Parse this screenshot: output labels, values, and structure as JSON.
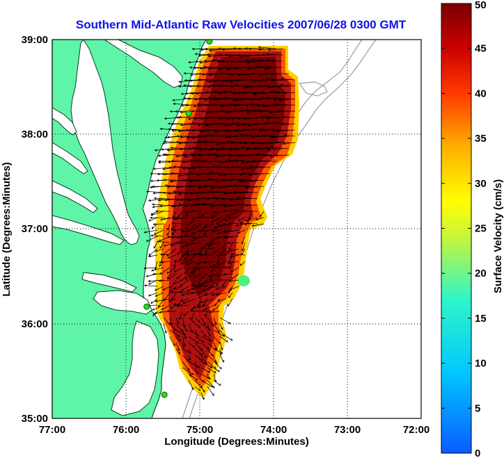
{
  "title": "Southern Mid-Atlantic Raw Velocities 2007/06/28 0300 GMT",
  "xaxis": {
    "label": "Longitude (Degrees:Minutes)",
    "ticks": [
      "77:00",
      "76:00",
      "75:00",
      "74:00",
      "73:00",
      "72:00"
    ]
  },
  "yaxis": {
    "label": "Latitude (Degrees:Minutes)",
    "ticks": [
      "39:00",
      "38:00",
      "37:00",
      "36:00",
      "35:00"
    ]
  },
  "colorbar": {
    "label": "Surface Velocity (cm/s)",
    "ticks": [
      "50",
      "45",
      "40",
      "35",
      "30",
      "25",
      "20",
      "15",
      "10",
      "5",
      "0"
    ],
    "min": 0,
    "max": 50
  },
  "colors": {
    "land": "#5ef5a8",
    "title": "#1010e8",
    "station": "#22dd22"
  },
  "map": {
    "lon_range": [
      -77,
      -72
    ],
    "lat_range": [
      35,
      39
    ],
    "grid": "dotted",
    "stations": [
      {
        "lon": -74.87,
        "lat": 38.98
      },
      {
        "lon": -75.15,
        "lat": 38.22
      },
      {
        "lon": -75.72,
        "lat": 36.18
      },
      {
        "lon": -75.48,
        "lat": 35.25
      }
    ]
  }
}
